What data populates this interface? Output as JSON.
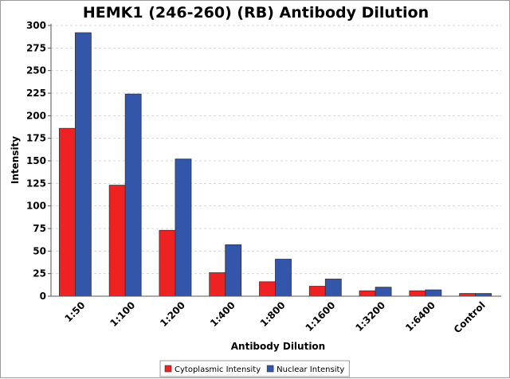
{
  "chart_data": {
    "type": "bar",
    "title": "HEMK1 (246-260) (RB) Antibody Dilution",
    "xlabel": "Antibody Dilution",
    "ylabel": "Intensity",
    "categories": [
      "1:50",
      "1:100",
      "1:200",
      "1:400",
      "1:800",
      "1:1600",
      "1:3200",
      "1:6400",
      "Control"
    ],
    "series": [
      {
        "name": "Cytoplasmic Intensity",
        "color": "#ee2222",
        "values": [
          186,
          123,
          73,
          26,
          16,
          11,
          6,
          6,
          3
        ]
      },
      {
        "name": "Nuclear Intensity",
        "color": "#3355aa",
        "values": [
          292,
          224,
          152,
          57,
          41,
          19,
          10,
          7,
          3
        ]
      }
    ],
    "ylim": [
      0,
      300
    ],
    "yticks": [
      0,
      25,
      50,
      75,
      100,
      125,
      150,
      175,
      200,
      225,
      250,
      275,
      300
    ],
    "grid": true,
    "legend_position": "bottom"
  }
}
